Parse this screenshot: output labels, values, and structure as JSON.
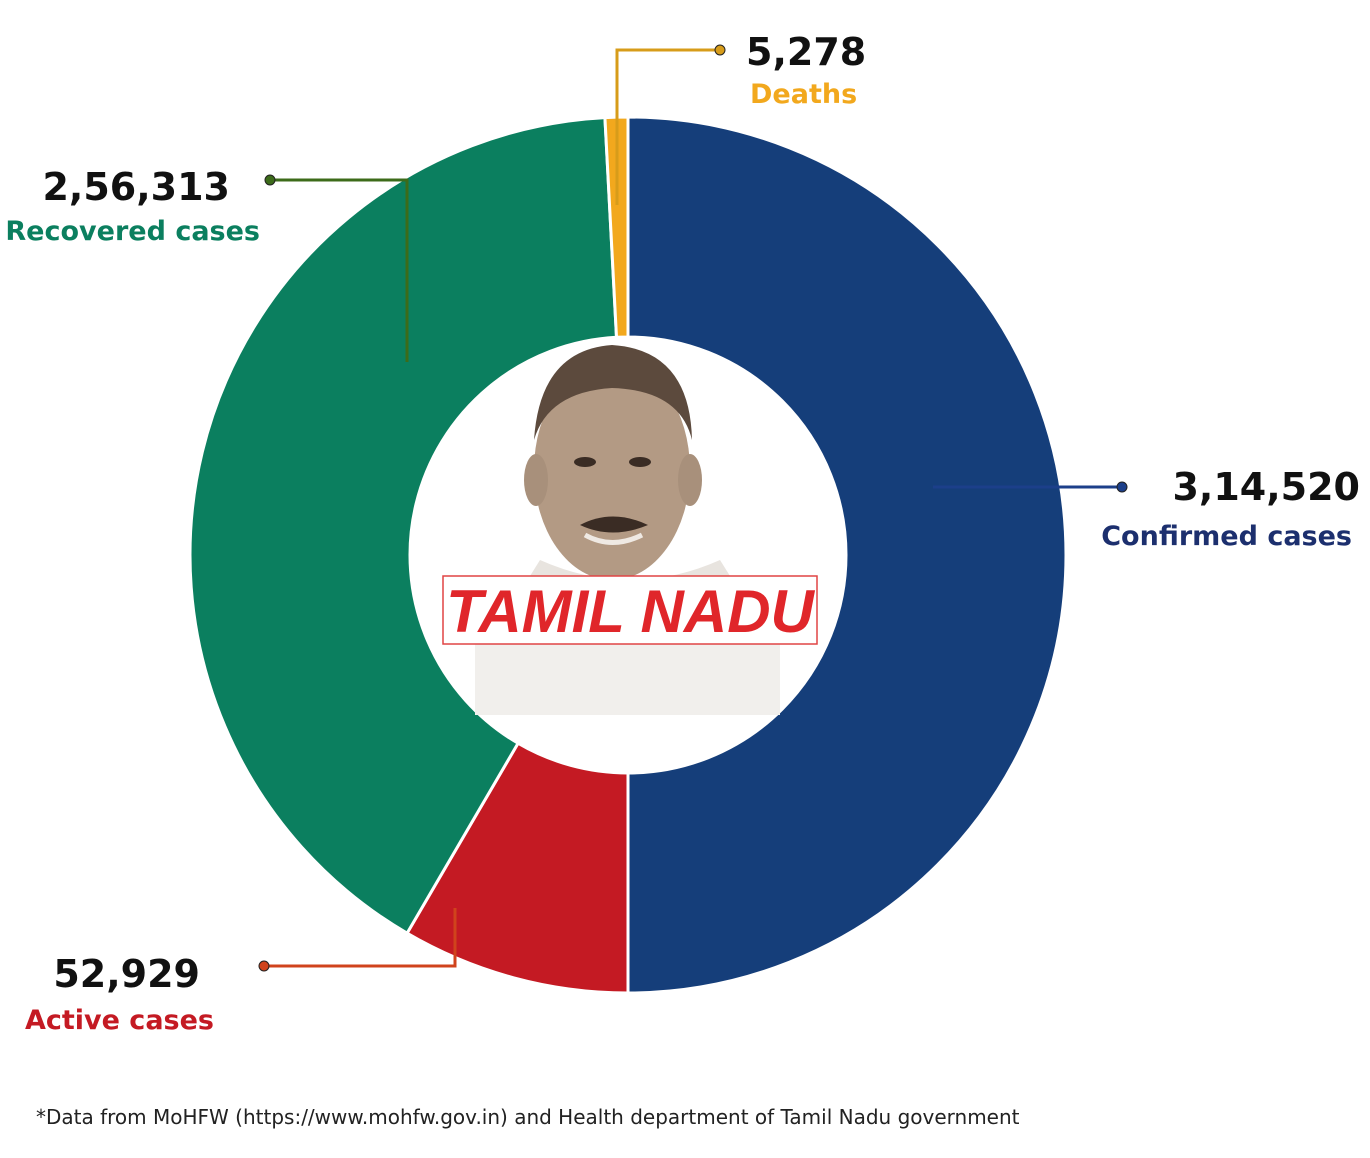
{
  "chart_data": {
    "type": "pie",
    "style": "donut",
    "center_label": "TAMIL NADU",
    "slices": [
      {
        "label": "Confirmed cases",
        "value": 314520,
        "value_text": "3,14,520",
        "color": "#153e7a"
      },
      {
        "label": "Active cases",
        "value": 52929,
        "value_text": "52,929",
        "color": "#c41a23"
      },
      {
        "label": "Recovered cases",
        "value": 256313,
        "value_text": "2,56,313",
        "color": "#0b7f5f"
      },
      {
        "label": "Deaths",
        "value": 5278,
        "value_text": "5,278",
        "color": "#f2a81d"
      }
    ],
    "label_colors": {
      "Confirmed cases": "#1c2f6e",
      "Active cases": "#c41a23",
      "Recovered cases": "#0b7f5f",
      "Deaths": "#f2a81d"
    },
    "leader_colors": {
      "Confirmed cases": "#1c3f8a",
      "Active cases": "#d0431c",
      "Recovered cases": "#3c6b1a",
      "Deaths": "#d79c1a"
    }
  },
  "source_note": "*Data from MoHFW (https://www.mohfw.gov.in) and Health department of Tamil Nadu government"
}
